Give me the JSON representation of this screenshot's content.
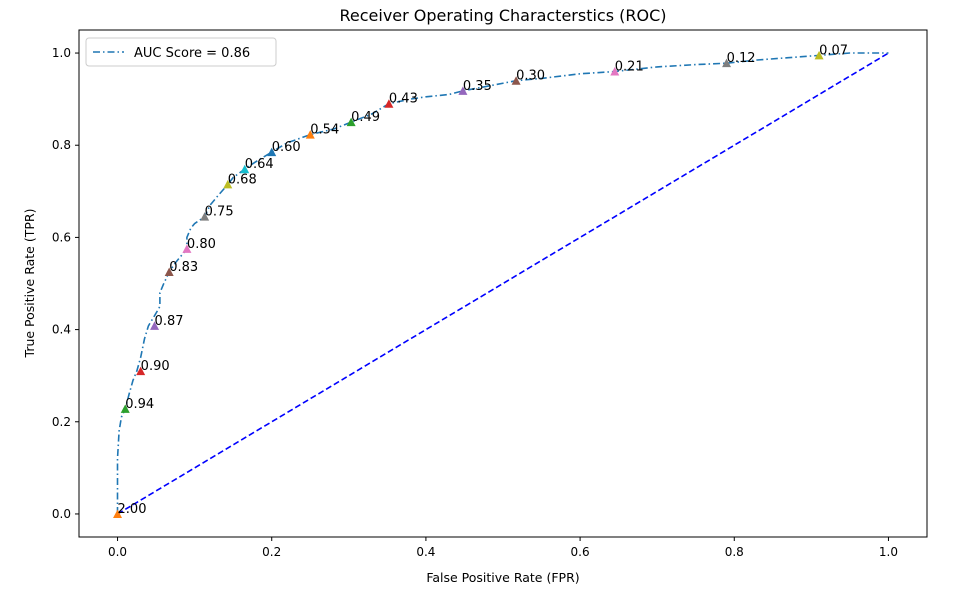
{
  "chart_data": {
    "type": "line",
    "title": "Receiver Operating Characterstics (ROC)",
    "xlabel": "False Positive Rate (FPR)",
    "ylabel": "True Positive Rate (TPR)",
    "xlim": [
      -0.05,
      1.05
    ],
    "ylim": [
      -0.05,
      1.05
    ],
    "xticks": [
      0.0,
      0.2,
      0.4,
      0.6,
      0.8,
      1.0
    ],
    "yticks": [
      0.0,
      0.2,
      0.4,
      0.6,
      0.8,
      1.0
    ],
    "xtick_labels": [
      "0.0",
      "0.2",
      "0.4",
      "0.6",
      "0.8",
      "1.0"
    ],
    "ytick_labels": [
      "0.0",
      "0.2",
      "0.4",
      "0.6",
      "0.8",
      "1.0"
    ],
    "grid": false,
    "legend": {
      "position": "top-left",
      "label": "AUC Score = 0.86"
    },
    "roc_curve": {
      "color": "#1f77b4",
      "x": [
        0.0,
        0.0,
        0.002,
        0.005,
        0.01,
        0.015,
        0.02,
        0.025,
        0.03,
        0.035,
        0.04,
        0.048,
        0.055,
        0.055,
        0.06,
        0.067,
        0.075,
        0.085,
        0.09,
        0.09,
        0.095,
        0.1,
        0.113,
        0.12,
        0.13,
        0.143,
        0.15,
        0.165,
        0.18,
        0.2,
        0.22,
        0.25,
        0.28,
        0.303,
        0.33,
        0.352,
        0.38,
        0.4,
        0.43,
        0.448,
        0.48,
        0.517,
        0.55,
        0.6,
        0.645,
        0.7,
        0.75,
        0.79,
        0.83,
        0.87,
        0.91,
        0.95,
        1.0
      ],
      "y": [
        0.0,
        0.12,
        0.18,
        0.21,
        0.228,
        0.26,
        0.29,
        0.31,
        0.34,
        0.38,
        0.408,
        0.43,
        0.45,
        0.48,
        0.5,
        0.525,
        0.545,
        0.565,
        0.575,
        0.6,
        0.62,
        0.63,
        0.645,
        0.67,
        0.69,
        0.715,
        0.73,
        0.748,
        0.765,
        0.785,
        0.805,
        0.823,
        0.835,
        0.85,
        0.868,
        0.89,
        0.9,
        0.905,
        0.91,
        0.918,
        0.928,
        0.94,
        0.945,
        0.955,
        0.96,
        0.97,
        0.975,
        0.978,
        0.985,
        0.99,
        0.995,
        1.0,
        1.0
      ]
    },
    "diagonal": {
      "x": [
        0.0,
        1.0
      ],
      "y": [
        0.0,
        1.0
      ],
      "color": "#0000ff"
    },
    "thresholds": [
      {
        "label": "2.00",
        "x": 0.0,
        "y": 0.0,
        "color": "#ff7f0e"
      },
      {
        "label": "0.94",
        "x": 0.01,
        "y": 0.228,
        "color": "#2ca02c"
      },
      {
        "label": "0.90",
        "x": 0.03,
        "y": 0.31,
        "color": "#d62728"
      },
      {
        "label": "0.87",
        "x": 0.048,
        "y": 0.408,
        "color": "#9467bd"
      },
      {
        "label": "0.83",
        "x": 0.067,
        "y": 0.525,
        "color": "#8c564b"
      },
      {
        "label": "0.80",
        "x": 0.09,
        "y": 0.575,
        "color": "#e377c2"
      },
      {
        "label": "0.75",
        "x": 0.113,
        "y": 0.645,
        "color": "#7f7f7f"
      },
      {
        "label": "0.68",
        "x": 0.143,
        "y": 0.715,
        "color": "#bcbd22"
      },
      {
        "label": "0.64",
        "x": 0.165,
        "y": 0.748,
        "color": "#17becf"
      },
      {
        "label": "0.60",
        "x": 0.2,
        "y": 0.785,
        "color": "#1f77b4"
      },
      {
        "label": "0.54",
        "x": 0.25,
        "y": 0.823,
        "color": "#ff7f0e"
      },
      {
        "label": "0.49",
        "x": 0.303,
        "y": 0.85,
        "color": "#2ca02c"
      },
      {
        "label": "0.43",
        "x": 0.352,
        "y": 0.89,
        "color": "#d62728"
      },
      {
        "label": "0.35",
        "x": 0.448,
        "y": 0.918,
        "color": "#9467bd"
      },
      {
        "label": "0.30",
        "x": 0.517,
        "y": 0.94,
        "color": "#8c564b"
      },
      {
        "label": "0.21",
        "x": 0.645,
        "y": 0.96,
        "color": "#e377c2"
      },
      {
        "label": "0.12",
        "x": 0.79,
        "y": 0.978,
        "color": "#7f7f7f"
      },
      {
        "label": "0.07",
        "x": 0.91,
        "y": 0.995,
        "color": "#bcbd22"
      }
    ]
  }
}
